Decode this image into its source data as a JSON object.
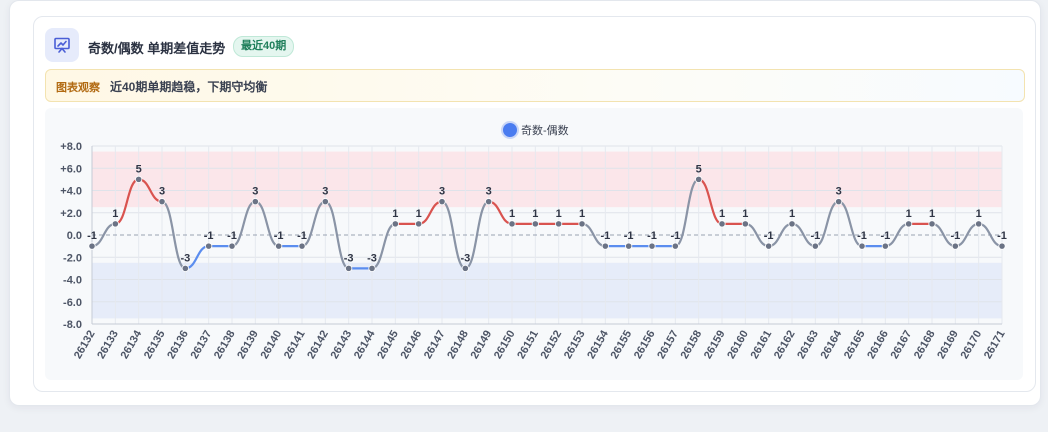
{
  "header": {
    "icon": "chart-presentation-icon",
    "title": "奇数/偶数 单期差值走势",
    "badge": "最近40期"
  },
  "insight": {
    "tag": "图表观察",
    "text": "近40期单期趋稳，下期守均衡"
  },
  "colors": {
    "positive": "#d9534f",
    "negative": "#5b8def",
    "neutral": "#8a94a6",
    "legend": "#4a7cf0",
    "positive_band": "#fbe3e6",
    "negative_band": "#e3eaf8"
  },
  "chart_data": {
    "type": "line",
    "smooth": true,
    "legend": [
      "奇数-偶数"
    ],
    "legend_position": "top-center",
    "x": [
      "26132",
      "26133",
      "26134",
      "26135",
      "26136",
      "26137",
      "26138",
      "26139",
      "26140",
      "26141",
      "26142",
      "26143",
      "26144",
      "26145",
      "26146",
      "26147",
      "26148",
      "26149",
      "26150",
      "26151",
      "26152",
      "26153",
      "26154",
      "26155",
      "26156",
      "26157",
      "26158",
      "26159",
      "26160",
      "26161",
      "26162",
      "26163",
      "26164",
      "26165",
      "26166",
      "26167",
      "26168",
      "26169",
      "26170",
      "26171"
    ],
    "series": [
      {
        "name": "奇数-偶数",
        "values": [
          -1,
          1,
          5,
          3,
          -3,
          -1,
          -1,
          3,
          -1,
          -1,
          3,
          -3,
          -3,
          1,
          1,
          3,
          -3,
          3,
          1,
          1,
          1,
          1,
          -1,
          -1,
          -1,
          -1,
          5,
          1,
          1,
          -1,
          1,
          -1,
          3,
          -1,
          -1,
          1,
          1,
          -1,
          1,
          -1
        ]
      }
    ],
    "y_ticks": [
      "+8.0",
      "+6.0",
      "+4.0",
      "+2.0",
      "0.0",
      "-2.0",
      "-4.0",
      "-6.0",
      "-8.0"
    ],
    "ylim": [
      -8,
      8
    ],
    "bands": [
      {
        "from": 2.5,
        "to": 7.5,
        "color": "positive"
      },
      {
        "from": -2.5,
        "to": -7.5,
        "color": "negative"
      }
    ],
    "zero_line": "dashed",
    "grid": true,
    "x_label_rotation": -60
  }
}
